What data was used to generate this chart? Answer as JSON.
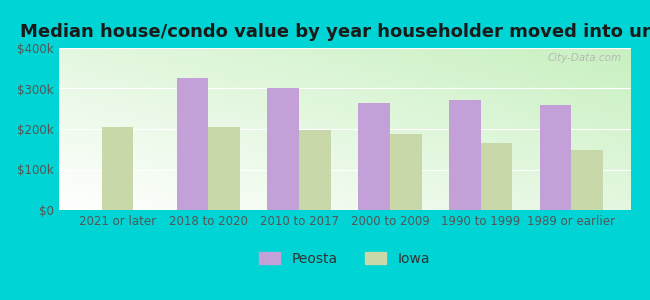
{
  "title": "Median house/condo value by year householder moved into unit",
  "categories": [
    "2021 or later",
    "2018 to 2020",
    "2010 to 2017",
    "2000 to 2009",
    "1990 to 1999",
    "1989 or earlier"
  ],
  "peosta": [
    0,
    325000,
    300000,
    265000,
    272000,
    260000
  ],
  "iowa": [
    205000,
    205000,
    197000,
    187000,
    165000,
    148000
  ],
  "peosta_color": "#c4a0d8",
  "iowa_color": "#c8d8a8",
  "background_outer": "#00d4d4",
  "ylim": [
    0,
    400000
  ],
  "yticks": [
    0,
    100000,
    200000,
    300000,
    400000
  ],
  "bar_width": 0.35,
  "legend_labels": [
    "Peosta",
    "Iowa"
  ],
  "watermark": "City-Data.com",
  "title_fontsize": 13,
  "tick_fontsize": 8.5,
  "legend_fontsize": 10
}
